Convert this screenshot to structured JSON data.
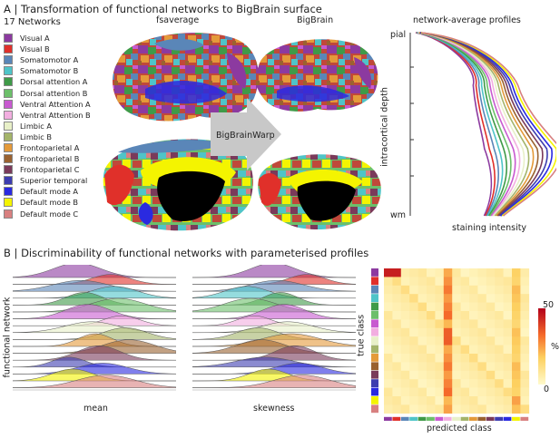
{
  "panel_a": {
    "title": "A | Transformation of functional networks to BigBrain surface",
    "legend_title": "17 Networks",
    "fsaverage_label": "fsaverage",
    "bigbrain_label": "BigBrain",
    "warp_label": "BigBrainWarp",
    "profiles_title": "network-average profiles",
    "profiles_ylabel": "intracortical depth",
    "profiles_xlabel": "staining intensity",
    "profiles_top": "pial",
    "profiles_bottom": "wm",
    "networks": [
      {
        "name": "Visual A",
        "color": "#8c3aa0"
      },
      {
        "name": "Visual B",
        "color": "#e0302a"
      },
      {
        "name": "Somatomotor A",
        "color": "#5a86b8"
      },
      {
        "name": "Somatomotor B",
        "color": "#4fc4c8"
      },
      {
        "name": "Dorsal attention A",
        "color": "#3f9a48"
      },
      {
        "name": "Dorsal attention B",
        "color": "#6cbf6a"
      },
      {
        "name": "Ventral Attention A",
        "color": "#c85ad0"
      },
      {
        "name": "Ventral Attention B",
        "color": "#f2aee0"
      },
      {
        "name": "Limbic A",
        "color": "#e8f0c8"
      },
      {
        "name": "Limbic B",
        "color": "#a4b46a"
      },
      {
        "name": "Frontoparietal A",
        "color": "#e49a3a"
      },
      {
        "name": "Frontoparietal B",
        "color": "#9a6230"
      },
      {
        "name": "Frontoparietal C",
        "color": "#7a3a5a"
      },
      {
        "name": "Superior temporal",
        "color": "#3d3db0"
      },
      {
        "name": "Default mode A",
        "color": "#2a2ae0"
      },
      {
        "name": "Default mode B",
        "color": "#f4f400"
      },
      {
        "name": "Default mode C",
        "color": "#d88080"
      }
    ]
  },
  "panel_b": {
    "title": "B | Discriminability of functional networks with parameterised profiles",
    "ylabel": "functional network",
    "mean_label": "mean",
    "skewness_label": "skewness",
    "heatmap_ylabel": "true class",
    "heatmap_xlabel": "predicted class",
    "colorbar_max": "50",
    "colorbar_min": "0",
    "colorbar_unit": "%"
  },
  "colors": {
    "arrow": "#c8c8c8",
    "background": "#ffffff"
  }
}
